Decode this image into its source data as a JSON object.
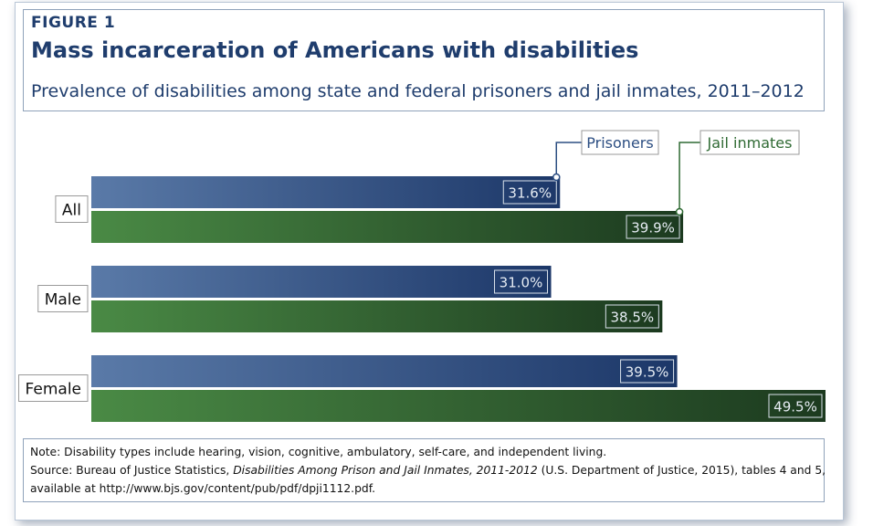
{
  "figure_label": "FIGURE 1",
  "chart_data": {
    "type": "bar",
    "orientation": "horizontal",
    "title": "Mass incarceration of Americans with disabilities",
    "subtitle": "Prevalence of disabilities among state and federal prisoners and jail inmates, 2011–2012",
    "categories": [
      "All",
      "Male",
      "Female"
    ],
    "series": [
      {
        "name": "Prisoners",
        "values": [
          31.6,
          31.0,
          39.5
        ],
        "labels": [
          "31.6%",
          "31.0%",
          "39.5%"
        ],
        "color": "#2c4e82"
      },
      {
        "name": "Jail inmates",
        "values": [
          39.9,
          38.5,
          49.5
        ],
        "labels": [
          "39.9%",
          "38.5%",
          "49.5%"
        ],
        "color": "#2f6a33"
      }
    ],
    "xlim": [
      0,
      49.5
    ],
    "grid": false,
    "legend_position": "top-right"
  },
  "notes": {
    "note": "Note: Disability types include hearing, vision, cognitive, ambulatory, self-care, and independent living.",
    "source_prefix": "Source: Bureau of Justice Statistics, ",
    "source_title": "Disabilities Among Prison and Jail Inmates, 2011-2012",
    "source_suffix": " (U.S. Department of Justice, 2015), tables 4 and 5,",
    "source_url_line": "available at http://www.bjs.gov/content/pub/pdf/dpji1112.pdf."
  }
}
